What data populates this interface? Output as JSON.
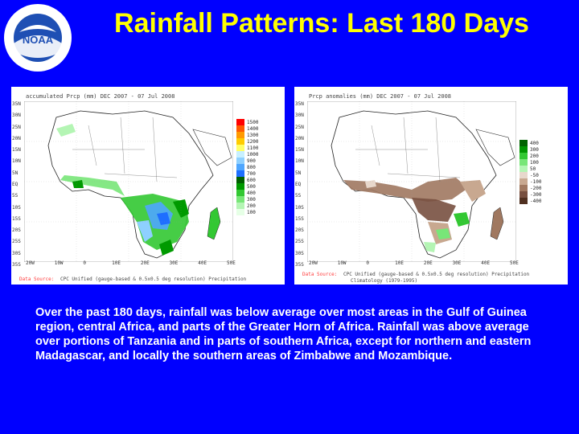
{
  "slide": {
    "title": "Rainfall Patterns: Last 180 Days",
    "logo": {
      "text": "NOAA",
      "ring_text": "NATIONAL OCEANIC AND ATMOSPHERIC ADMINISTRATION · U.S. DEPARTMENT OF COMMERCE",
      "icon": "noaa-logo"
    },
    "caption": "Over the past 180 days, rainfall was below average over most areas in the Gulf of Guinea region, central Africa, and parts of the Greater Horn of Africa.  Rainfall was above average over portions of Tanzania and in parts of southern Africa, except for northern and eastern Madagascar, and locally the southern areas of Zimbabwe and Mozambique."
  },
  "maps": [
    {
      "id": "accumulated",
      "header": "accumulated Prcp (mm)       DEC 2007 - 07 Jul 2008",
      "footer_label": "Data Source:",
      "footer": "CPC Unified (gauge-based & 0.5x0.5 deg resolution) Precipitation",
      "lat_labels": [
        "35N",
        "30N",
        "25N",
        "20N",
        "15N",
        "10N",
        "5N",
        "EQ",
        "5S",
        "10S",
        "15S",
        "20S",
        "25S",
        "30S",
        "35S"
      ],
      "lon_labels": [
        "20W",
        "10W",
        "0",
        "10E",
        "20E",
        "30E",
        "40E",
        "50E"
      ],
      "legend": [
        {
          "label": "1500",
          "color": "#ff0000"
        },
        {
          "label": "1400",
          "color": "#ff5a00"
        },
        {
          "label": "1300",
          "color": "#ff9a00"
        },
        {
          "label": "1200",
          "color": "#ffcc00"
        },
        {
          "label": "1100",
          "color": "#ffff66"
        },
        {
          "label": "1000",
          "color": "#c8f0ff"
        },
        {
          "label": "900",
          "color": "#8ed0ff"
        },
        {
          "label": "800",
          "color": "#4ea6ff"
        },
        {
          "label": "700",
          "color": "#1e6eff"
        },
        {
          "label": "600",
          "color": "#006000"
        },
        {
          "label": "500",
          "color": "#009a00"
        },
        {
          "label": "400",
          "color": "#32c832"
        },
        {
          "label": "300",
          "color": "#78e678"
        },
        {
          "label": "200",
          "color": "#b4f5b4"
        },
        {
          "label": "100",
          "color": "#e6ffe6"
        }
      ]
    },
    {
      "id": "anomaly",
      "header": "Prcp anomalies (mm)         DEC 2007 - 07 Jul 2008",
      "footer_label": "Data Source:",
      "footer": "CPC Unified (gauge-based & 0.5x0.5 deg resolution) Precipitation",
      "footer2": "Climatology (1979-1995)",
      "lat_labels": [
        "35N",
        "30N",
        "25N",
        "20N",
        "15N",
        "10N",
        "5N",
        "EQ",
        "5S",
        "10S",
        "15S",
        "20S",
        "25S",
        "30S",
        "35S"
      ],
      "lon_labels": [
        "20W",
        "10W",
        "0",
        "10E",
        "20E",
        "30E",
        "40E",
        "50E"
      ],
      "legend": [
        {
          "label": "400",
          "color": "#006400"
        },
        {
          "label": "300",
          "color": "#009600"
        },
        {
          "label": "200",
          "color": "#32c832"
        },
        {
          "label": "100",
          "color": "#78e678"
        },
        {
          "label": "50",
          "color": "#b4f5b4"
        },
        {
          "label": "-50",
          "color": "#e8d8cc"
        },
        {
          "label": "-100",
          "color": "#c8a890"
        },
        {
          "label": "-200",
          "color": "#a07860"
        },
        {
          "label": "-300",
          "color": "#785040"
        },
        {
          "label": "-400",
          "color": "#503020"
        }
      ]
    }
  ]
}
